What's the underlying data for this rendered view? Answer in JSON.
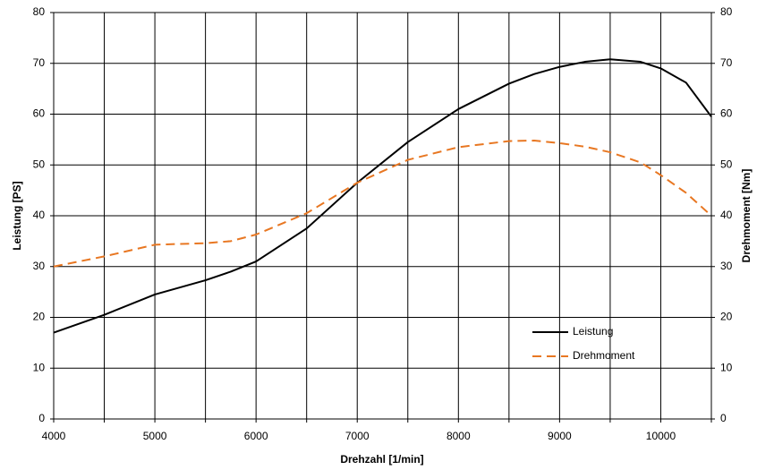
{
  "chart_data": {
    "type": "line",
    "x_label": "Drehzahl [1/min]",
    "y_label": "Leistung [PS]",
    "y2_label": "Drehmoment [Nm]",
    "x": [
      4000,
      4500,
      5000,
      5500,
      5750,
      6000,
      6500,
      7000,
      7500,
      8000,
      8500,
      8750,
      9000,
      9250,
      9500,
      9800,
      10000,
      10250,
      10500
    ],
    "series": [
      {
        "name": "Leistung",
        "color": "#000000",
        "dash": false,
        "values": [
          17,
          20.5,
          24.5,
          27.3,
          29,
          31,
          37.5,
          46.5,
          54.5,
          61,
          66,
          67.9,
          69.3,
          70.3,
          70.8,
          70.3,
          69,
          66.2,
          59.5
        ]
      },
      {
        "name": "Drehmoment",
        "color": "#e87722",
        "dash": true,
        "axis": "y2",
        "values": [
          30,
          32,
          34.3,
          34.6,
          35,
          36.3,
          40.5,
          46.5,
          51,
          53.5,
          54.7,
          54.8,
          54.3,
          53.6,
          52.5,
          50.5,
          48,
          44.5,
          40
        ]
      }
    ],
    "xlim": [
      4000,
      10500
    ],
    "xticks": [
      4000,
      5000,
      6000,
      7000,
      8000,
      9000,
      10000
    ],
    "xgrid": [
      4000,
      4500,
      5000,
      5500,
      6000,
      6500,
      7000,
      7500,
      8000,
      8500,
      9000,
      9500,
      10000,
      10500
    ],
    "ylim": [
      0,
      80
    ],
    "yticks": [
      0,
      10,
      20,
      30,
      40,
      50,
      60,
      70,
      80
    ],
    "y2lim": [
      0,
      80
    ],
    "y2ticks": [
      0,
      10,
      20,
      30,
      40,
      50,
      60,
      70,
      80
    ],
    "grid": true,
    "legend": "lower right"
  }
}
